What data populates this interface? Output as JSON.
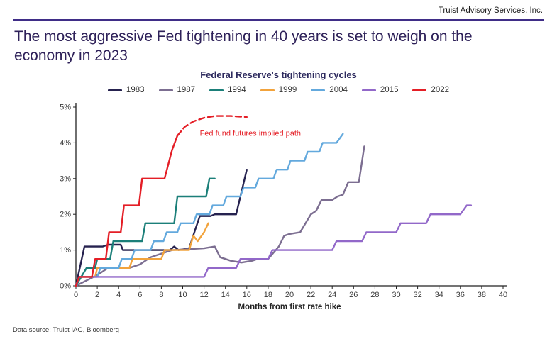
{
  "header": {
    "brand": "Truist Advisory Services, Inc."
  },
  "title": "The most aggressive Fed tightening in 40 years is set to weigh on the economy in 2023",
  "footer": {
    "source": "Data source: Truist IAG, Bloomberg"
  },
  "colors": {
    "title": "#2e2159",
    "rule": "#3f2d87",
    "axis": "#222222",
    "tick_text": "#3a3a3a"
  },
  "chart_data": {
    "type": "line",
    "title": "Federal Reserve's tightening cycles",
    "xlabel": "Months from first rate hike",
    "ylabel": "",
    "xlim": [
      0,
      40
    ],
    "ylim": [
      0,
      5
    ],
    "x_ticks": [
      0,
      2,
      4,
      6,
      8,
      10,
      12,
      14,
      16,
      18,
      20,
      22,
      24,
      26,
      28,
      30,
      32,
      34,
      36,
      38,
      40
    ],
    "y_ticks": [
      {
        "v": 0,
        "label": "0%"
      },
      {
        "v": 1,
        "label": "1%"
      },
      {
        "v": 2,
        "label": "2%"
      },
      {
        "v": 3,
        "label": "3%"
      },
      {
        "v": 4,
        "label": "4%"
      },
      {
        "v": 5,
        "label": "5%"
      }
    ],
    "grid": false,
    "legend_position": "top",
    "annotation": {
      "text": "Fed fund futures implied path",
      "x": 11.6,
      "y": 4.2,
      "color": "#e41e26"
    },
    "series": [
      {
        "name": "1983",
        "color": "#26224f",
        "points": [
          [
            0,
            0
          ],
          [
            0.8,
            1.1
          ],
          [
            2.5,
            1.1
          ],
          [
            3,
            1.15
          ],
          [
            4.2,
            1.15
          ],
          [
            4.4,
            1.0
          ],
          [
            8.8,
            1.0
          ],
          [
            9.2,
            1.1
          ],
          [
            9.6,
            1.0
          ],
          [
            10.6,
            1.05
          ],
          [
            11.2,
            1.6
          ],
          [
            11.6,
            1.95
          ],
          [
            12.6,
            1.95
          ],
          [
            13,
            2.0
          ],
          [
            15,
            2.0
          ],
          [
            16,
            3.25
          ]
        ]
      },
      {
        "name": "1987",
        "color": "#7c6e91",
        "points": [
          [
            0,
            0
          ],
          [
            1,
            0.15
          ],
          [
            2,
            0.3
          ],
          [
            3,
            0.5
          ],
          [
            5,
            0.5
          ],
          [
            6,
            0.6
          ],
          [
            7,
            0.8
          ],
          [
            8,
            0.9
          ],
          [
            9,
            1.0
          ],
          [
            12,
            1.05
          ],
          [
            13,
            1.1
          ],
          [
            13.5,
            0.8
          ],
          [
            14.5,
            0.7
          ],
          [
            15.5,
            0.65
          ],
          [
            16.5,
            0.7
          ],
          [
            17,
            0.75
          ],
          [
            18,
            0.75
          ],
          [
            19,
            1.1
          ],
          [
            19.5,
            1.4
          ],
          [
            20,
            1.45
          ],
          [
            21,
            1.5
          ],
          [
            21.5,
            1.75
          ],
          [
            22,
            2.0
          ],
          [
            22.5,
            2.1
          ],
          [
            23,
            2.4
          ],
          [
            24,
            2.4
          ],
          [
            24.5,
            2.5
          ],
          [
            25,
            2.55
          ],
          [
            25.5,
            2.9
          ],
          [
            26.5,
            2.9
          ],
          [
            27,
            3.9
          ]
        ]
      },
      {
        "name": "1994",
        "color": "#1b7f79",
        "points": [
          [
            0,
            0
          ],
          [
            0.5,
            0.25
          ],
          [
            1,
            0.5
          ],
          [
            1.8,
            0.5
          ],
          [
            2,
            0.75
          ],
          [
            3.2,
            0.75
          ],
          [
            3.5,
            1.25
          ],
          [
            6.2,
            1.25
          ],
          [
            6.5,
            1.75
          ],
          [
            9.2,
            1.75
          ],
          [
            9.5,
            2.5
          ],
          [
            12.2,
            2.5
          ],
          [
            12.5,
            3.0
          ],
          [
            13,
            3.0
          ]
        ]
      },
      {
        "name": "1999",
        "color": "#f2a33c",
        "points": [
          [
            0,
            0
          ],
          [
            0.3,
            0.25
          ],
          [
            1.8,
            0.25
          ],
          [
            2,
            0.5
          ],
          [
            5,
            0.5
          ],
          [
            5.3,
            0.75
          ],
          [
            8,
            0.75
          ],
          [
            8.3,
            1.0
          ],
          [
            10.6,
            1.0
          ],
          [
            11,
            1.4
          ],
          [
            11.4,
            1.25
          ],
          [
            12,
            1.5
          ],
          [
            12.4,
            1.75
          ]
        ]
      },
      {
        "name": "2004",
        "color": "#63a9dd",
        "points": [
          [
            0,
            0
          ],
          [
            0.3,
            0.25
          ],
          [
            2,
            0.25
          ],
          [
            2.3,
            0.5
          ],
          [
            4,
            0.5
          ],
          [
            4.3,
            0.75
          ],
          [
            5.2,
            0.75
          ],
          [
            5.5,
            1.0
          ],
          [
            7,
            1.0
          ],
          [
            7.3,
            1.25
          ],
          [
            8.2,
            1.25
          ],
          [
            8.5,
            1.5
          ],
          [
            9.5,
            1.5
          ],
          [
            9.8,
            1.75
          ],
          [
            11,
            1.75
          ],
          [
            11.3,
            2.0
          ],
          [
            12.5,
            2.0
          ],
          [
            12.8,
            2.25
          ],
          [
            13.8,
            2.25
          ],
          [
            14.1,
            2.5
          ],
          [
            15.4,
            2.5
          ],
          [
            15.7,
            2.75
          ],
          [
            16.8,
            2.75
          ],
          [
            17.1,
            3.0
          ],
          [
            18.5,
            3.0
          ],
          [
            18.8,
            3.25
          ],
          [
            19.8,
            3.25
          ],
          [
            20.1,
            3.5
          ],
          [
            21.4,
            3.5
          ],
          [
            21.7,
            3.75
          ],
          [
            22.8,
            3.75
          ],
          [
            23.1,
            4.0
          ],
          [
            24.4,
            4.0
          ],
          [
            25,
            4.25
          ]
        ]
      },
      {
        "name": "2015",
        "color": "#9268c9",
        "points": [
          [
            0,
            0
          ],
          [
            0.3,
            0.25
          ],
          [
            12,
            0.25
          ],
          [
            12.4,
            0.5
          ],
          [
            15,
            0.5
          ],
          [
            15.4,
            0.75
          ],
          [
            18,
            0.75
          ],
          [
            18.4,
            1.0
          ],
          [
            24,
            1.0
          ],
          [
            24.4,
            1.25
          ],
          [
            26.8,
            1.25
          ],
          [
            27.2,
            1.5
          ],
          [
            30,
            1.5
          ],
          [
            30.4,
            1.75
          ],
          [
            32.8,
            1.75
          ],
          [
            33.2,
            2.0
          ],
          [
            36,
            2.0
          ],
          [
            36.6,
            2.25
          ],
          [
            37,
            2.25
          ]
        ]
      },
      {
        "name": "2022",
        "color": "#e41e26",
        "points": [
          [
            0,
            0
          ],
          [
            0.3,
            0.25
          ],
          [
            1.5,
            0.25
          ],
          [
            1.8,
            0.75
          ],
          [
            2.8,
            0.75
          ],
          [
            3.1,
            1.5
          ],
          [
            4.2,
            1.5
          ],
          [
            4.5,
            2.25
          ],
          [
            5.9,
            2.25
          ],
          [
            6.2,
            3.0
          ],
          [
            8.3,
            3.0
          ],
          [
            9,
            3.8
          ],
          [
            9.5,
            4.2
          ]
        ],
        "dashed_points": [
          [
            9.5,
            4.2
          ],
          [
            10.2,
            4.45
          ],
          [
            11,
            4.6
          ],
          [
            12,
            4.7
          ],
          [
            13,
            4.75
          ],
          [
            14.5,
            4.75
          ],
          [
            16,
            4.72
          ]
        ]
      }
    ]
  }
}
